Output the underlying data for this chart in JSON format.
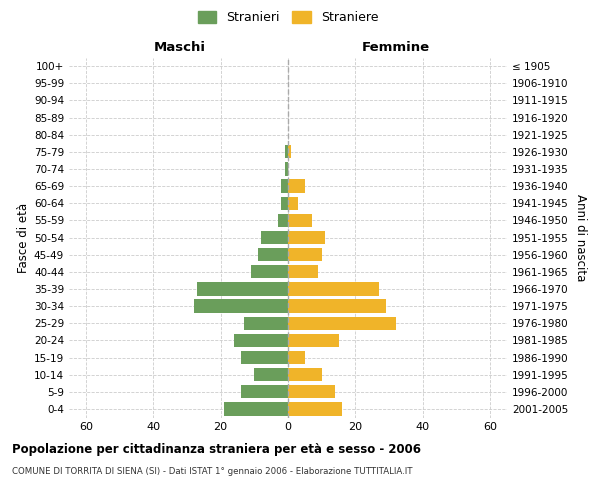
{
  "age_groups": [
    "0-4",
    "5-9",
    "10-14",
    "15-19",
    "20-24",
    "25-29",
    "30-34",
    "35-39",
    "40-44",
    "45-49",
    "50-54",
    "55-59",
    "60-64",
    "65-69",
    "70-74",
    "75-79",
    "80-84",
    "85-89",
    "90-94",
    "95-99",
    "100+"
  ],
  "birth_years": [
    "2001-2005",
    "1996-2000",
    "1991-1995",
    "1986-1990",
    "1981-1985",
    "1976-1980",
    "1971-1975",
    "1966-1970",
    "1961-1965",
    "1956-1960",
    "1951-1955",
    "1946-1950",
    "1941-1945",
    "1936-1940",
    "1931-1935",
    "1926-1930",
    "1921-1925",
    "1916-1920",
    "1911-1915",
    "1906-1910",
    "≤ 1905"
  ],
  "males": [
    19,
    14,
    10,
    14,
    16,
    13,
    28,
    27,
    11,
    9,
    8,
    3,
    2,
    2,
    1,
    1,
    0,
    0,
    0,
    0,
    0
  ],
  "females": [
    16,
    14,
    10,
    5,
    15,
    32,
    29,
    27,
    9,
    10,
    11,
    7,
    3,
    5,
    0,
    1,
    0,
    0,
    0,
    0,
    0
  ],
  "male_color": "#6a9e5b",
  "female_color": "#f0b429",
  "male_label": "Stranieri",
  "female_label": "Straniere",
  "xlim": 65,
  "xlabel_left": "Maschi",
  "xlabel_right": "Femmine",
  "ylabel_left": "Fasce di età",
  "ylabel_right": "Anni di nascita",
  "title": "Popolazione per cittadinanza straniera per età e sesso - 2006",
  "subtitle": "COMUNE DI TORRITA DI SIENA (SI) - Dati ISTAT 1° gennaio 2006 - Elaborazione TUTTITALIA.IT",
  "background_color": "#ffffff",
  "grid_color": "#cccccc"
}
